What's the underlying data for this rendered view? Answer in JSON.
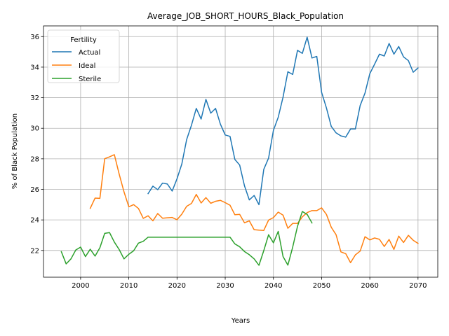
{
  "chart_data": {
    "type": "line",
    "title": "Average_JOB_SHORT_HOURS_Black_Population",
    "xlabel": "Years",
    "ylabel": "% of Black Population",
    "xlim": [
      1992.3,
      2074.1
    ],
    "ylim": [
      20.25,
      36.7
    ],
    "xticks": [
      2000,
      2010,
      2020,
      2030,
      2040,
      2050,
      2060,
      2070
    ],
    "yticks": [
      22,
      24,
      26,
      28,
      30,
      32,
      34,
      36
    ],
    "grid": true,
    "legend": {
      "title": "Fertility",
      "position": "upper-left"
    },
    "series": [
      {
        "name": "Actual",
        "color": "#1f77b4",
        "x": [
          2014,
          2015,
          2016,
          2017,
          2018,
          2019,
          2020,
          2021,
          2022,
          2023,
          2024,
          2025,
          2026,
          2027,
          2028,
          2029,
          2030,
          2031,
          2032,
          2033,
          2034,
          2035,
          2036,
          2037,
          2038,
          2039,
          2040,
          2041,
          2042,
          2043,
          2044,
          2045,
          2046,
          2047,
          2048,
          2049,
          2050,
          2051,
          2052,
          2053,
          2054,
          2055,
          2056,
          2057,
          2058,
          2059,
          2060,
          2061,
          2062,
          2063,
          2064,
          2065,
          2066,
          2067,
          2068,
          2069,
          2070
        ],
        "y": [
          25.72,
          26.21,
          25.98,
          26.41,
          26.35,
          25.89,
          26.69,
          27.66,
          29.26,
          30.2,
          31.3,
          30.6,
          31.89,
          30.99,
          31.3,
          30.27,
          29.56,
          29.47,
          27.96,
          27.59,
          26.23,
          25.31,
          25.6,
          25.0,
          27.31,
          28.05,
          29.86,
          30.72,
          32.04,
          33.7,
          33.52,
          35.1,
          34.9,
          35.96,
          34.6,
          34.7,
          32.35,
          31.33,
          30.12,
          29.7,
          29.5,
          29.42,
          29.95,
          29.95,
          31.49,
          32.3,
          33.57,
          34.2,
          34.85,
          34.73,
          35.55,
          34.85,
          35.35,
          34.67,
          34.43,
          33.67,
          33.95
        ]
      },
      {
        "name": "Ideal",
        "color": "#ff7f0e",
        "x": [
          2002,
          2003,
          2004,
          2005,
          2006,
          2007,
          2008,
          2009,
          2010,
          2011,
          2012,
          2013,
          2014,
          2015,
          2016,
          2017,
          2018,
          2019,
          2020,
          2021,
          2022,
          2023,
          2024,
          2025,
          2026,
          2027,
          2028,
          2029,
          2030,
          2031,
          2032,
          2033,
          2034,
          2035,
          2036,
          2037,
          2038,
          2039,
          2040,
          2041,
          2042,
          2043,
          2044,
          2045,
          2046,
          2047,
          2048,
          2049,
          2050,
          2051,
          2052,
          2053,
          2054,
          2055,
          2056,
          2057,
          2058,
          2059,
          2060,
          2061,
          2062,
          2063,
          2064,
          2065,
          2066,
          2067,
          2068,
          2069,
          2070
        ],
        "y": [
          24.76,
          25.43,
          25.41,
          28.01,
          28.13,
          28.27,
          27.0,
          25.84,
          24.86,
          25.0,
          24.75,
          24.1,
          24.27,
          23.94,
          24.42,
          24.11,
          24.14,
          24.16,
          24.01,
          24.38,
          24.89,
          25.08,
          25.67,
          25.11,
          25.46,
          25.09,
          25.22,
          25.28,
          25.13,
          24.96,
          24.34,
          24.36,
          23.81,
          23.94,
          23.36,
          23.33,
          23.31,
          23.99,
          24.15,
          24.51,
          24.31,
          23.45,
          23.77,
          23.77,
          24.2,
          24.48,
          24.61,
          24.61,
          24.79,
          24.36,
          23.52,
          23.03,
          21.91,
          21.79,
          21.2,
          21.71,
          21.96,
          22.9,
          22.69,
          22.82,
          22.73,
          22.26,
          22.72,
          22.07,
          22.94,
          22.52,
          22.99,
          22.67,
          22.46
        ]
      },
      {
        "name": "Sterile",
        "color": "#2ca02c",
        "x": [
          1996,
          1997,
          1998,
          1999,
          2000,
          2001,
          2002,
          2003,
          2004,
          2005,
          2006,
          2007,
          2008,
          2009,
          2010,
          2011,
          2012,
          2013,
          2014,
          2015,
          2016,
          2017,
          2018,
          2019,
          2020,
          2021,
          2022,
          2023,
          2024,
          2025,
          2026,
          2027,
          2028,
          2029,
          2030,
          2031,
          2032,
          2033,
          2034,
          2035,
          2036,
          2037,
          2038,
          2039,
          2040,
          2041,
          2042,
          2043,
          2044,
          2045,
          2046,
          2047,
          2048
        ],
        "y": [
          21.92,
          21.12,
          21.45,
          22.03,
          22.22,
          21.6,
          22.08,
          21.63,
          22.18,
          23.12,
          23.17,
          22.55,
          22.06,
          21.45,
          21.75,
          21.98,
          22.48,
          22.6,
          22.87,
          22.87,
          22.87,
          22.87,
          22.87,
          22.87,
          22.87,
          22.87,
          22.87,
          22.87,
          22.87,
          22.87,
          22.87,
          22.87,
          22.87,
          22.87,
          22.87,
          22.87,
          22.43,
          22.24,
          21.93,
          21.72,
          21.45,
          21.03,
          21.99,
          23.03,
          22.5,
          23.25,
          21.6,
          21.04,
          22.22,
          23.58,
          24.55,
          24.36,
          23.8
        ]
      }
    ]
  }
}
